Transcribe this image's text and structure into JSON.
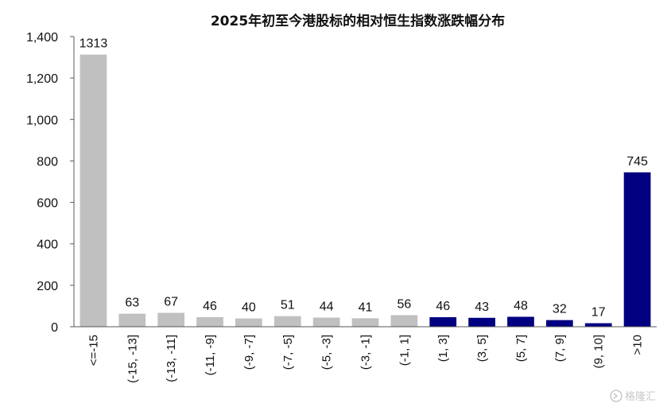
{
  "chart_data": {
    "type": "bar",
    "title": "2025年初至今港股标的相对恒生指数涨跌幅分布",
    "xlabel": "",
    "ylabel": "",
    "categories": [
      "<=-15",
      "(-15, -13]",
      "(-13, -11]",
      "(-11, -9]",
      "(-9, -7]",
      "(-7, -5]",
      "(-5, -3]",
      "(-3, -1]",
      "(-1, 1]",
      "(1, 3]",
      "(3, 5]",
      "(5, 7]",
      "(7, 9]",
      "(9, 10]",
      ">10"
    ],
    "values": [
      1313,
      63,
      67,
      46,
      40,
      51,
      44,
      41,
      56,
      46,
      43,
      48,
      32,
      17,
      745
    ],
    "value_labels": [
      "1313",
      "63",
      "67",
      "46",
      "40",
      "51",
      "44",
      "41",
      "56",
      "46",
      "43",
      "48",
      "32",
      "17",
      "745"
    ],
    "ylim": [
      0,
      1400
    ],
    "yticks": [
      0,
      200,
      400,
      600,
      800,
      1000,
      1200,
      1400
    ],
    "ytick_labels": [
      "0",
      "200",
      "400",
      "600",
      "800",
      "1,000",
      "1,200",
      "1,400"
    ],
    "grid": false,
    "legend": "none",
    "colors": {
      "negative": "#c0c0c0",
      "positive": "#000080"
    },
    "color_split_index": 9
  },
  "watermark": {
    "text": "格隆汇",
    "icon": "glh-logo-icon"
  }
}
